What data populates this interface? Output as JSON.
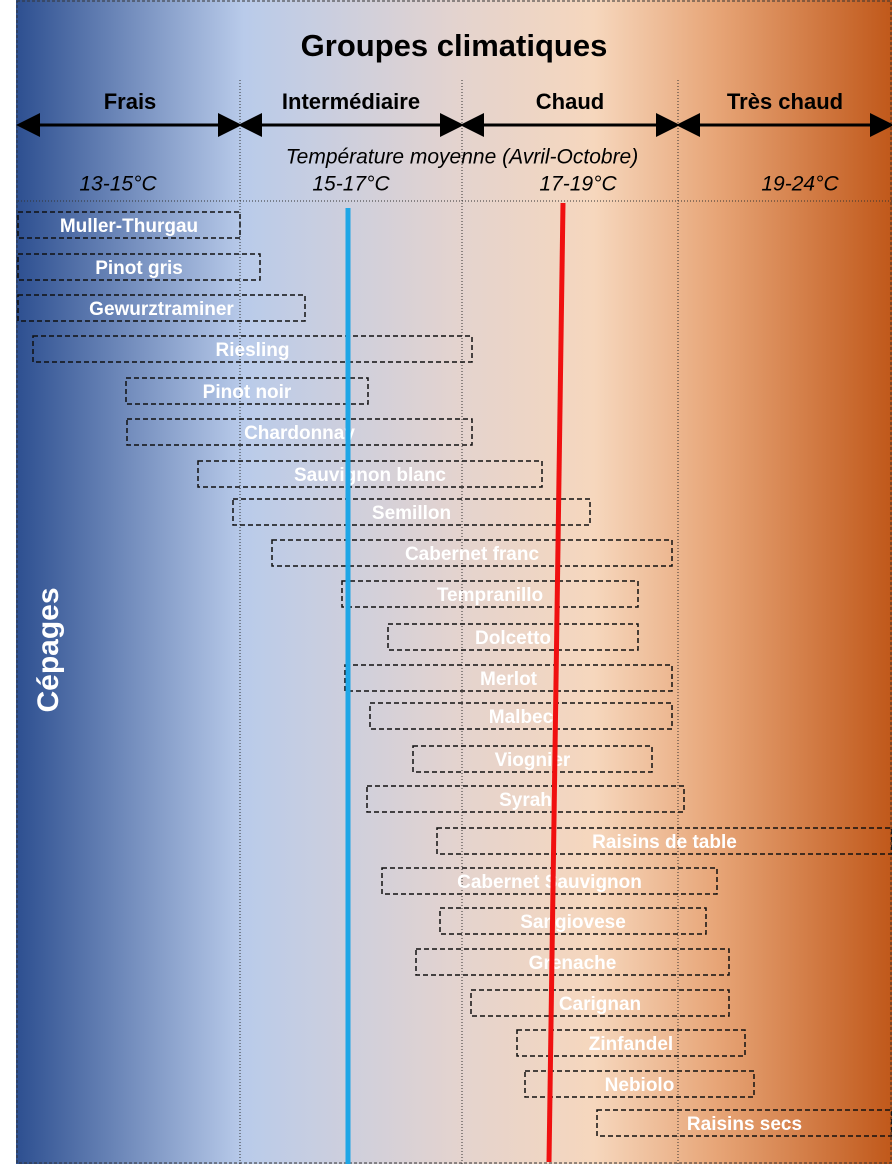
{
  "header": {
    "title": "Groupes climatiques",
    "subtitle": "Température moyenne (Avril-Octobre)"
  },
  "groups": [
    {
      "label": "Frais",
      "range": "13-15°C"
    },
    {
      "label": "Intermédiaire",
      "range": "15-17°C"
    },
    {
      "label": "Chaud",
      "range": "17-19°C"
    },
    {
      "label": "Très chaud",
      "range": "19-24°C"
    }
  ],
  "axis_label": "Cépages",
  "grapes": [
    "Muller-Thurgau",
    "Pinot gris",
    "Gewurztraminer",
    "Riesling",
    "Pinot noir",
    "Chardonnay",
    "Sauvignon blanc",
    "Semillon",
    "Cabernet franc",
    "Tempranillo",
    "Dolcetto",
    "Merlot",
    "Malbec",
    "Viognier",
    "Syrah",
    "Raisins de table",
    "Cabernet Sauvignon",
    "Sangiovese",
    "Grenache",
    "Carignan",
    "Zinfandel",
    "Nebiolo",
    "Raisins secs"
  ]
}
